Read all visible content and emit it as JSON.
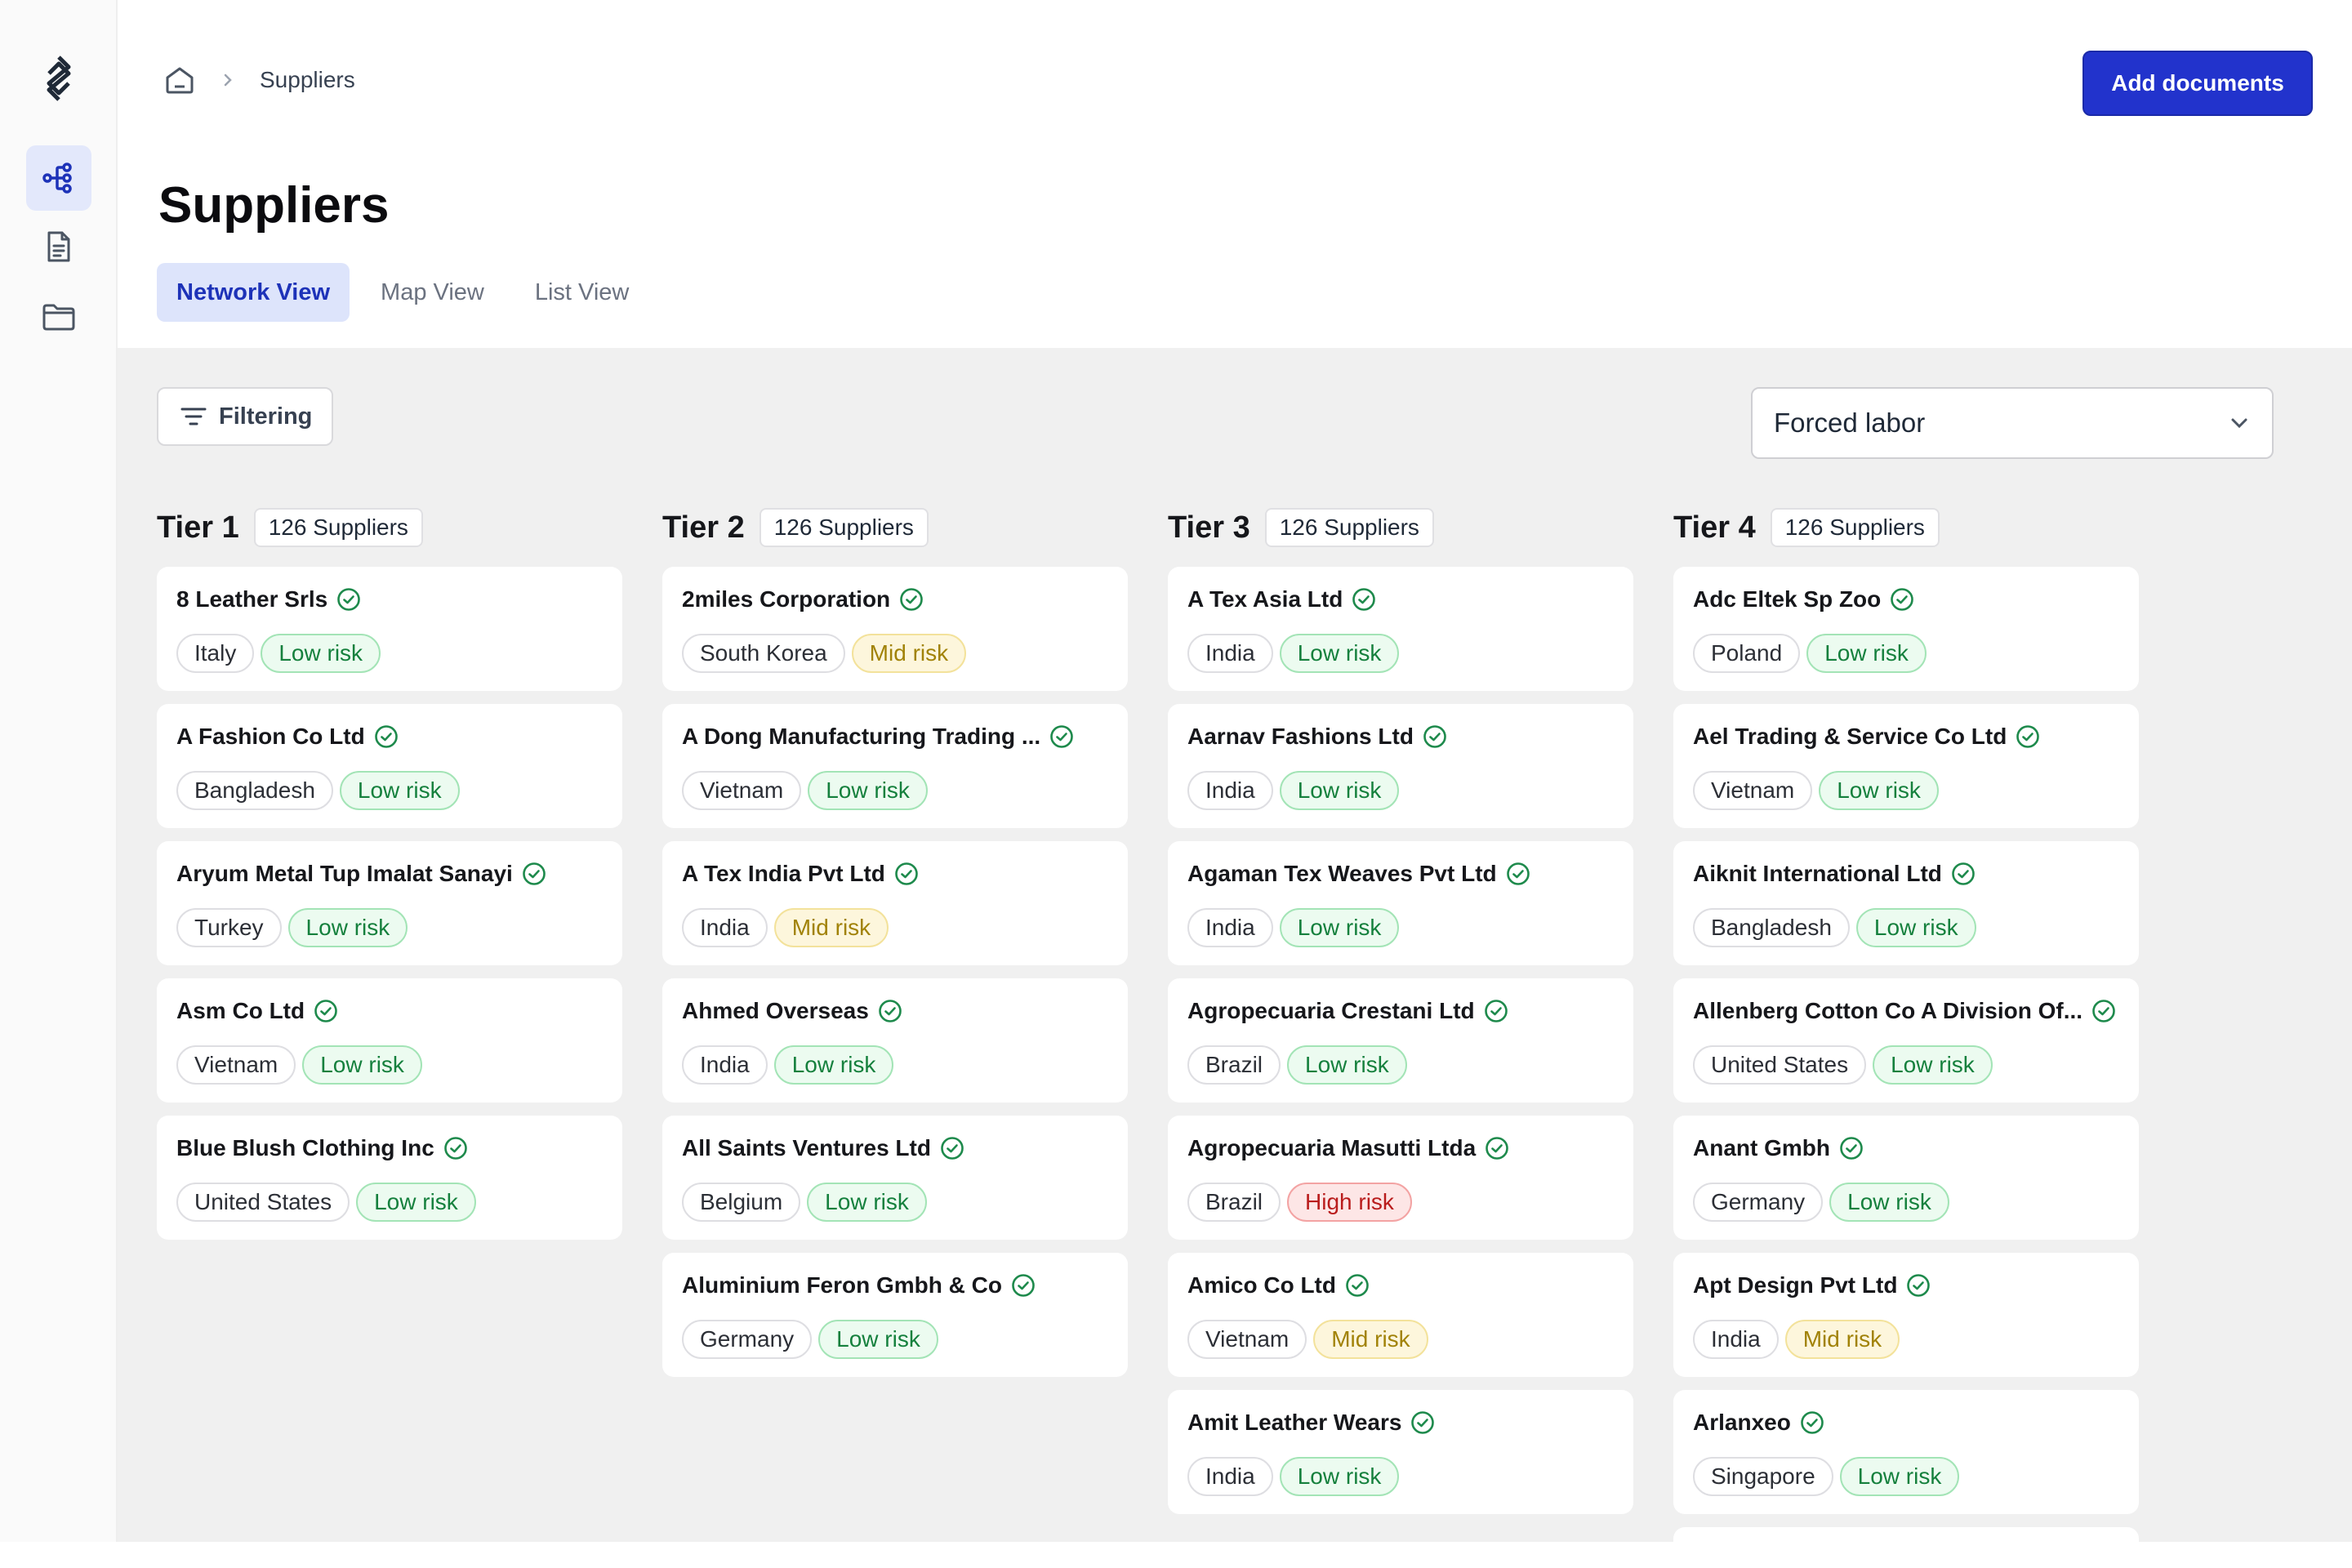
{
  "nav": {
    "logo": "logo-icon",
    "items": [
      {
        "icon": "network-icon",
        "active": true
      },
      {
        "icon": "document-icon",
        "active": false
      },
      {
        "icon": "folder-icon",
        "active": false
      }
    ]
  },
  "breadcrumb": {
    "home_icon": "home-icon",
    "current": "Suppliers"
  },
  "header": {
    "add_label": "Add documents"
  },
  "page_title": "Suppliers",
  "tabs": [
    {
      "label": "Network View",
      "active": true
    },
    {
      "label": "Map View",
      "active": false
    },
    {
      "label": "List View",
      "active": false
    }
  ],
  "filter_label": "Filtering",
  "risk_select": {
    "value": "Forced labor"
  },
  "tiers": [
    {
      "title": "Tier 1",
      "count": "126 Suppliers",
      "suppliers": [
        {
          "name": "8 Leather Srls",
          "country": "Italy",
          "risk": "Low risk",
          "level": "low"
        },
        {
          "name": "A Fashion Co Ltd",
          "country": "Bangladesh",
          "risk": "Low risk",
          "level": "low"
        },
        {
          "name": "Aryum Metal Tup Imalat Sanayi",
          "country": "Turkey",
          "risk": "Low risk",
          "level": "low"
        },
        {
          "name": "Asm Co Ltd",
          "country": "Vietnam",
          "risk": "Low risk",
          "level": "low"
        },
        {
          "name": "Blue Blush Clothing Inc",
          "country": "United States",
          "risk": "Low risk",
          "level": "low"
        }
      ]
    },
    {
      "title": "Tier 2",
      "count": "126 Suppliers",
      "suppliers": [
        {
          "name": "2miles Corporation",
          "country": "South Korea",
          "risk": "Mid risk",
          "level": "mid"
        },
        {
          "name": "A Dong Manufacturing Trading ...",
          "country": "Vietnam",
          "risk": "Low risk",
          "level": "low"
        },
        {
          "name": "A Tex India Pvt Ltd",
          "country": "India",
          "risk": "Mid risk",
          "level": "mid"
        },
        {
          "name": "Ahmed Overseas",
          "country": "India",
          "risk": "Low risk",
          "level": "low"
        },
        {
          "name": "All Saints Ventures Ltd",
          "country": "Belgium",
          "risk": "Low risk",
          "level": "low"
        },
        {
          "name": "Aluminium Feron Gmbh & Co",
          "country": "Germany",
          "risk": "Low risk",
          "level": "low"
        }
      ]
    },
    {
      "title": "Tier 3",
      "count": "126 Suppliers",
      "suppliers": [
        {
          "name": "A Tex Asia Ltd",
          "country": "India",
          "risk": "Low risk",
          "level": "low"
        },
        {
          "name": "Aarnav Fashions Ltd",
          "country": "India",
          "risk": "Low risk",
          "level": "low"
        },
        {
          "name": "Agaman Tex Weaves Pvt Ltd",
          "country": "India",
          "risk": "Low risk",
          "level": "low"
        },
        {
          "name": "Agropecuaria Crestani Ltd",
          "country": "Brazil",
          "risk": "Low risk",
          "level": "low"
        },
        {
          "name": "Agropecuaria Masutti Ltda",
          "country": "Brazil",
          "risk": "High risk",
          "level": "high"
        },
        {
          "name": "Amico Co Ltd",
          "country": "Vietnam",
          "risk": "Mid risk",
          "level": "mid"
        },
        {
          "name": "Amit Leather Wears",
          "country": "India",
          "risk": "Low risk",
          "level": "low"
        }
      ]
    },
    {
      "title": "Tier 4",
      "count": "126 Suppliers",
      "suppliers": [
        {
          "name": "Adc Eltek Sp Zoo",
          "country": "Poland",
          "risk": "Low risk",
          "level": "low"
        },
        {
          "name": "Ael Trading & Service Co Ltd",
          "country": "Vietnam",
          "risk": "Low risk",
          "level": "low"
        },
        {
          "name": "Aiknit International Ltd",
          "country": "Bangladesh",
          "risk": "Low risk",
          "level": "low"
        },
        {
          "name": "Allenberg Cotton Co A Division Of...",
          "country": "United States",
          "risk": "Low risk",
          "level": "low"
        },
        {
          "name": "Anant Gmbh",
          "country": "Germany",
          "risk": "Low risk",
          "level": "low"
        },
        {
          "name": "Apt Design Pvt Ltd",
          "country": "India",
          "risk": "Mid risk",
          "level": "mid"
        },
        {
          "name": "Arlanxeo",
          "country": "Singapore",
          "risk": "Low risk",
          "level": "low"
        }
      ]
    }
  ]
}
